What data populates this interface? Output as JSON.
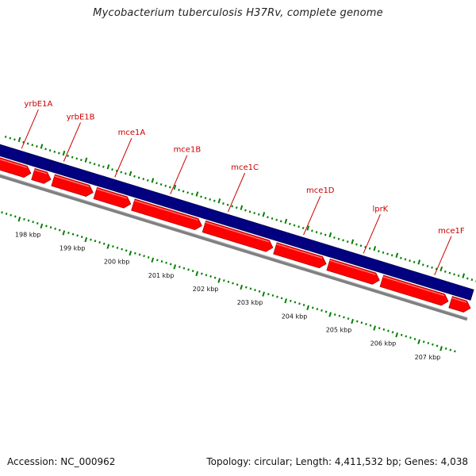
{
  "title": "Mycobacterium tuberculosis H37Rv, complete genome",
  "footer": {
    "accession": "Accession: NC_000962",
    "summary": "Topology: circular; Length: 4,411,532 bp; Genes: 4,038"
  },
  "colors": {
    "forward_feature": "#000080",
    "cds": "#ff0000",
    "backbone": "#808080",
    "tick": "#008000",
    "label": "#cc0000"
  },
  "map": {
    "start_kbp": 197.13,
    "end_kbp": 207.85,
    "genes": [
      {
        "name": "yrbE1A",
        "label_pos": 197.6
      },
      {
        "name": "yrbE1B",
        "label_pos": 198.55
      },
      {
        "name": "mce1A",
        "label_pos": 199.7
      },
      {
        "name": "mce1B",
        "label_pos": 200.95
      },
      {
        "name": "mce1C",
        "label_pos": 202.25
      },
      {
        "name": "mce1D",
        "label_pos": 203.95
      },
      {
        "name": "lprK",
        "label_pos": 205.3
      },
      {
        "name": "mce1F",
        "label_pos": 206.9
      }
    ],
    "navy_boundaries": [
      197.8,
      198.3
    ],
    "cds_segments": [
      {
        "start": 197.13,
        "end": 197.95
      },
      {
        "start": 198.0,
        "end": 198.4
      },
      {
        "start": 198.45,
        "end": 199.35
      },
      {
        "start": 199.4,
        "end": 200.2
      },
      {
        "start": 200.25,
        "end": 201.8
      },
      {
        "start": 201.85,
        "end": 203.4
      },
      {
        "start": 203.45,
        "end": 204.6
      },
      {
        "start": 204.65,
        "end": 205.8
      },
      {
        "start": 205.85,
        "end": 207.35
      },
      {
        "start": 207.4,
        "end": 207.85
      }
    ],
    "kbp_labels": [
      {
        "label": "198 kbp",
        "pos": 198
      },
      {
        "label": "199 kbp",
        "pos": 199
      },
      {
        "label": "200 kbp",
        "pos": 200
      },
      {
        "label": "201 kbp",
        "pos": 201
      },
      {
        "label": "202 kbp",
        "pos": 202
      },
      {
        "label": "203 kbp",
        "pos": 203
      },
      {
        "label": "204 kbp",
        "pos": 204
      },
      {
        "label": "205 kbp",
        "pos": 205
      },
      {
        "label": "206 kbp",
        "pos": 206
      },
      {
        "label": "207 kbp",
        "pos": 207
      }
    ]
  }
}
